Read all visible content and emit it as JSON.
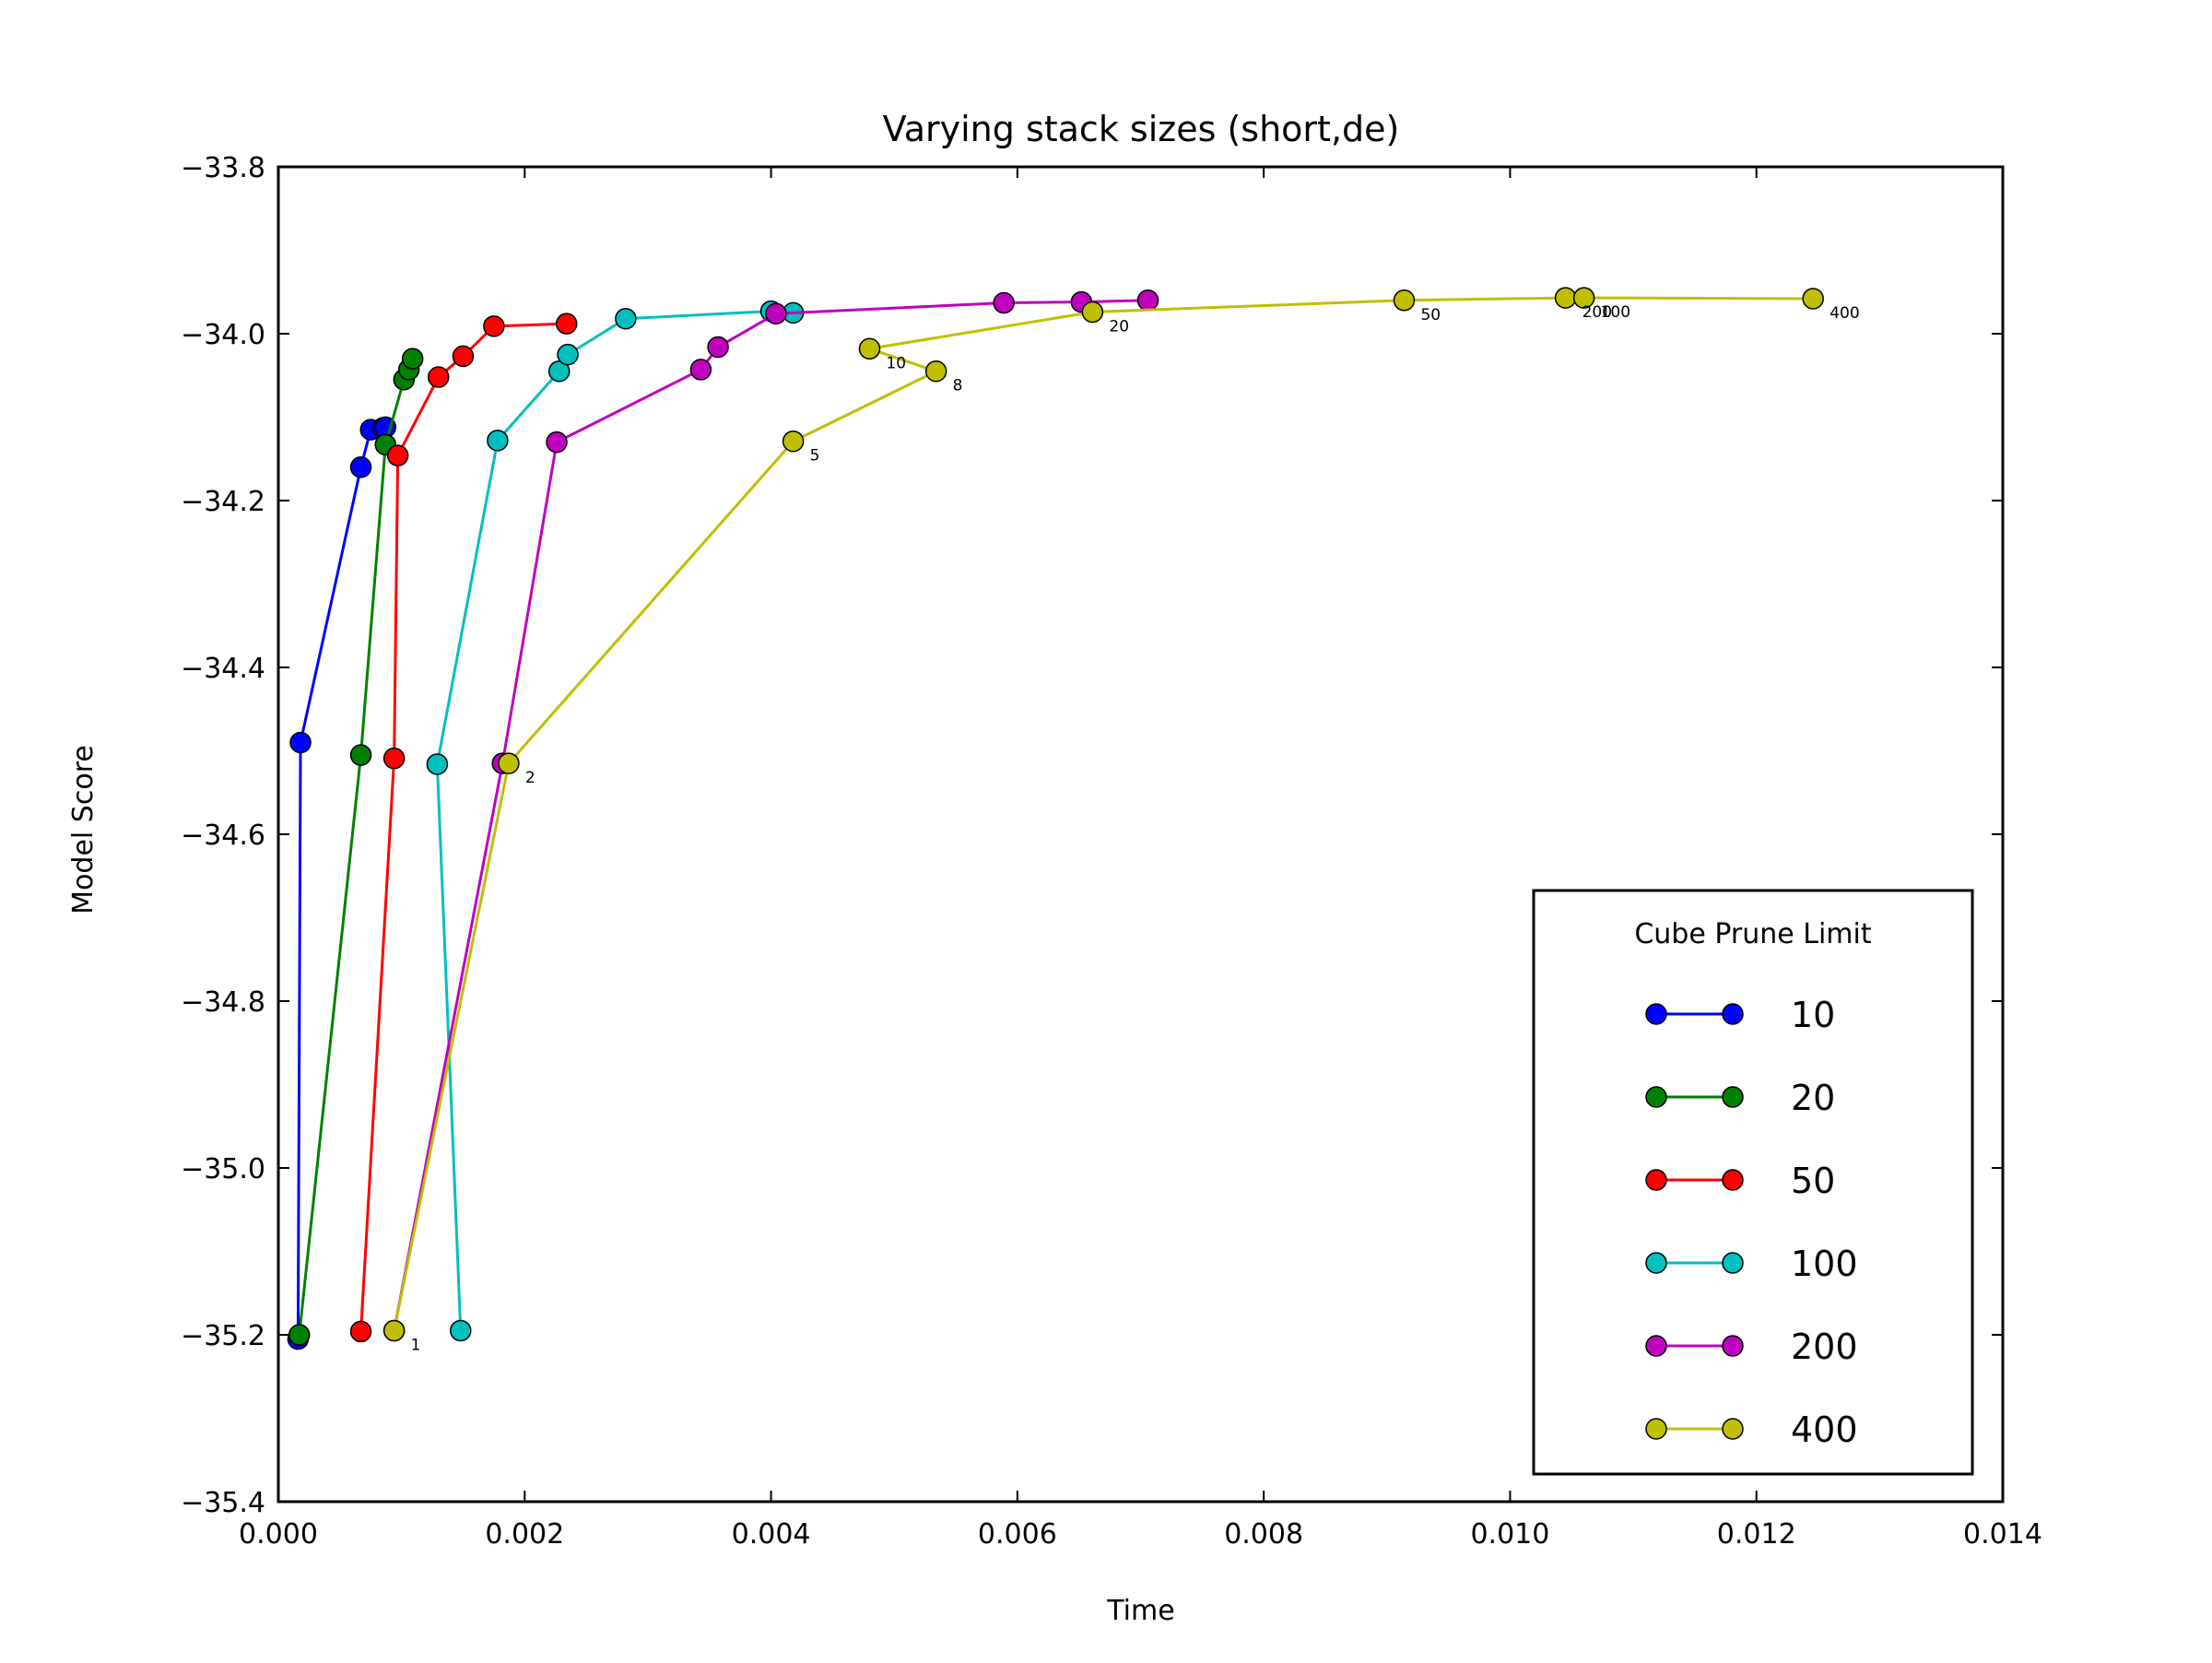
{
  "chart_data": {
    "type": "line",
    "title": "Varying stack sizes (short,de)",
    "xlabel": "Time",
    "ylabel": "Model Score",
    "xlim": [
      0.0,
      0.014
    ],
    "ylim": [
      -35.4,
      -33.8
    ],
    "xticks": [
      0.0,
      0.002,
      0.004,
      0.006,
      0.008,
      0.01,
      0.012,
      0.014
    ],
    "xtick_labels": [
      "0.000",
      "0.002",
      "0.004",
      "0.006",
      "0.008",
      "0.010",
      "0.012",
      "0.014"
    ],
    "yticks": [
      -33.8,
      -34.0,
      -34.2,
      -34.4,
      -34.6,
      -34.8,
      -35.0,
      -35.2,
      -35.4
    ],
    "ytick_labels": [
      "−33.8",
      "−34.0",
      "−34.2",
      "−34.4",
      "−34.6",
      "−34.8",
      "−35.0",
      "−35.2",
      "−35.4"
    ],
    "grid": false,
    "legend": {
      "title": "Cube Prune Limit",
      "position": "lower-right"
    },
    "series": [
      {
        "name": "10",
        "color": "#0000ff",
        "x": [
          0.00016,
          0.00018,
          0.00067,
          0.00075,
          0.00085,
          0.00087
        ],
        "y": [
          -35.205,
          -34.49,
          -34.16,
          -34.115,
          -34.113,
          -34.112
        ]
      },
      {
        "name": "20",
        "color": "#008000",
        "x": [
          0.00017,
          0.00067,
          0.00087,
          0.00102,
          0.00106,
          0.00109
        ],
        "y": [
          -35.2,
          -34.505,
          -34.133,
          -34.055,
          -34.043,
          -34.03
        ]
      },
      {
        "name": "50",
        "color": "#ff0000",
        "x": [
          0.00067,
          0.00094,
          0.00097,
          0.0013,
          0.0015,
          0.00175,
          0.00234
        ],
        "y": [
          -35.196,
          -34.509,
          -34.146,
          -34.052,
          -34.027,
          -33.991,
          -33.988
        ]
      },
      {
        "name": "100",
        "color": "#00bfbf",
        "x": [
          0.00148,
          0.00129,
          0.00178,
          0.00228,
          0.00235,
          0.00282,
          0.004,
          0.00418
        ],
        "y": [
          -35.195,
          -34.516,
          -34.128,
          -34.045,
          -34.025,
          -33.982,
          -33.973,
          -33.975
        ]
      },
      {
        "name": "200",
        "color": "#bf00bf",
        "x": [
          0.00094,
          0.00182,
          0.00226,
          0.00343,
          0.00357,
          0.00404,
          0.00589,
          0.00652,
          0.00706
        ],
        "y": [
          -35.195,
          -34.515,
          -34.13,
          -34.043,
          -34.016,
          -33.976,
          -33.963,
          -33.962,
          -33.96
        ]
      },
      {
        "name": "400",
        "color": "#bfbf00",
        "x": [
          0.00094,
          0.00187,
          0.00418,
          0.00534,
          0.0048,
          0.00661,
          0.00914,
          0.01045,
          0.0106,
          0.01246
        ],
        "y": [
          -35.195,
          -34.515,
          -34.129,
          -34.045,
          -34.018,
          -33.974,
          -33.96,
          -33.957,
          -33.957,
          -33.958
        ]
      }
    ],
    "annotations": [
      {
        "text": "1",
        "x": 0.00094,
        "y": -35.195
      },
      {
        "text": "2",
        "x": 0.00187,
        "y": -34.515
      },
      {
        "text": "5",
        "x": 0.00418,
        "y": -34.129
      },
      {
        "text": "8",
        "x": 0.00534,
        "y": -34.045
      },
      {
        "text": "10",
        "x": 0.0048,
        "y": -34.018
      },
      {
        "text": "20",
        "x": 0.00661,
        "y": -33.974
      },
      {
        "text": "50",
        "x": 0.00914,
        "y": -33.96
      },
      {
        "text": "200",
        "x": 0.01045,
        "y": -33.957
      },
      {
        "text": "100",
        "x": 0.0106,
        "y": -33.957
      },
      {
        "text": "400",
        "x": 0.01246,
        "y": -33.958
      }
    ]
  }
}
